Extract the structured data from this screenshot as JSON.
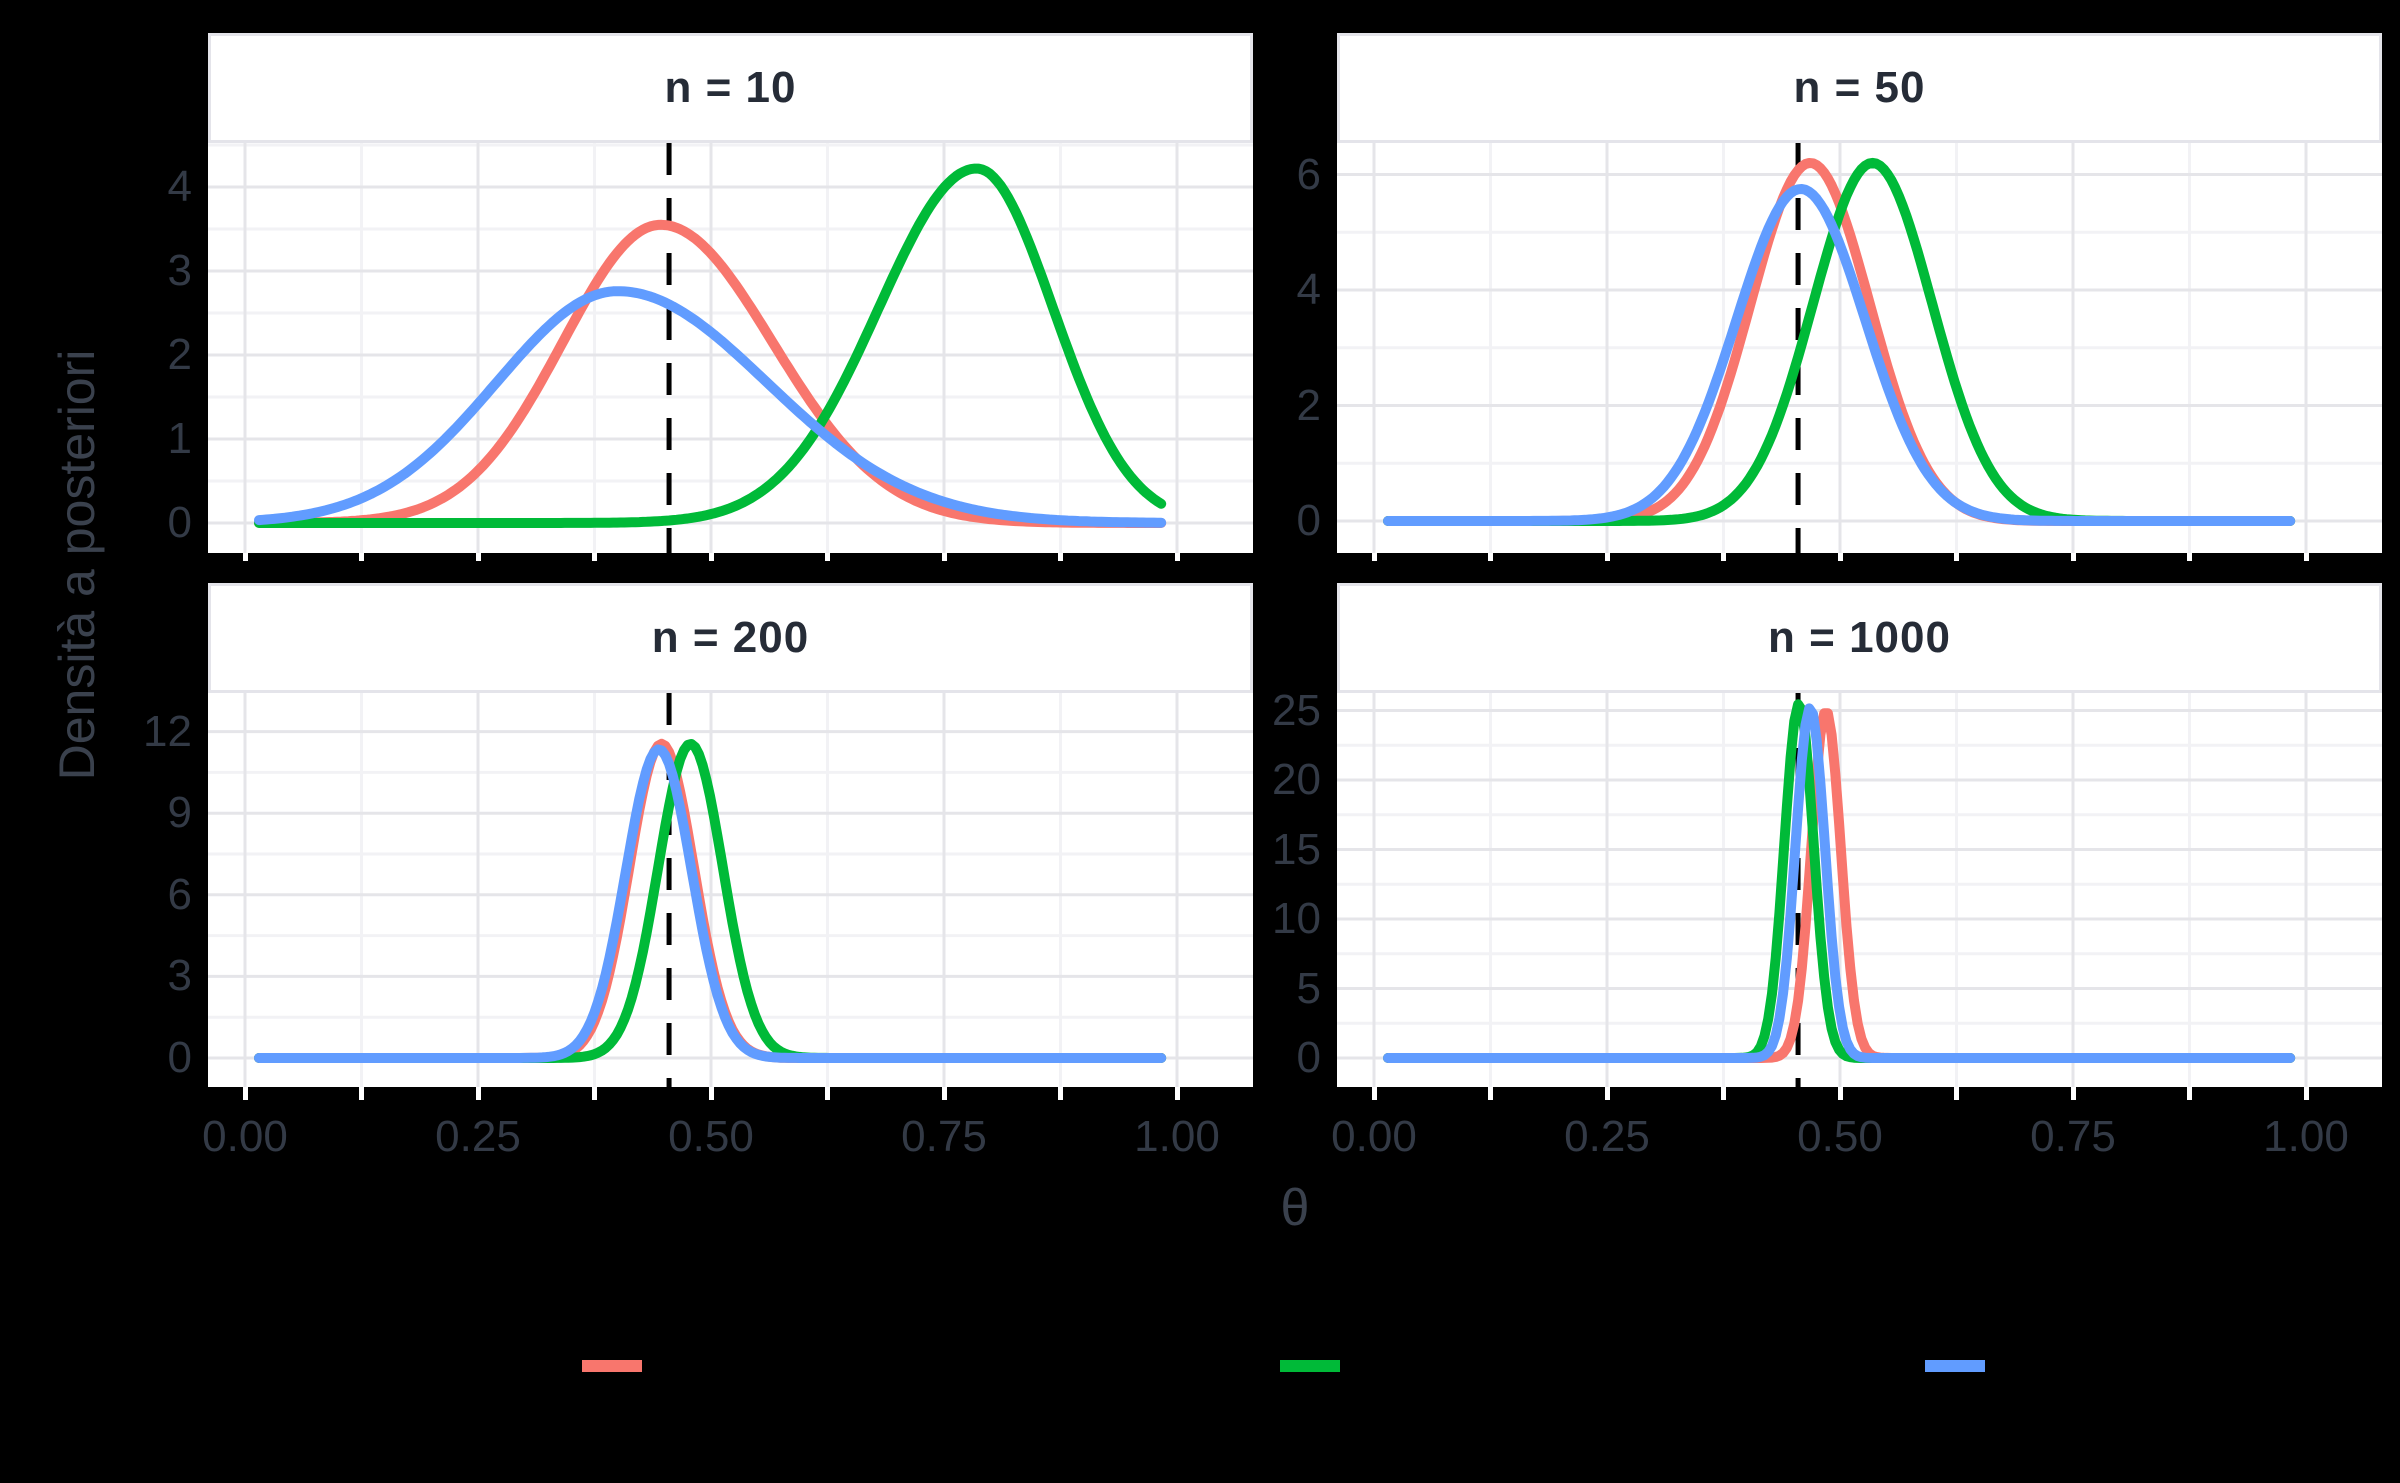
{
  "figure": {
    "background_color": "#000000",
    "panel_background": "#ffffff",
    "grid_major_color": "#e5e5e9",
    "grid_minor_color": "#f2f2f5",
    "tick_text_color": "#333a46",
    "axis_title_color": "#3a414d",
    "strip_text_color": "#262c37",
    "strip_border_color": "#e4e4ea",
    "tick_mark_color": "#ffffff",
    "y_axis_title": "Densità a posteriori",
    "x_axis_title": "θ"
  },
  "chart_data": {
    "type": "line",
    "title": "",
    "xlabel": "θ",
    "ylabel": "Densità a posteriori",
    "grid": true,
    "legend_position": "bottom",
    "x_range": [
      0,
      1
    ],
    "x_ticks": [
      0,
      0.25,
      0.5,
      0.75,
      1
    ],
    "x_tick_labels": [
      "0.00",
      "0.25",
      "0.50",
      "0.75",
      "1.00"
    ],
    "x_minor_step": 0.125,
    "curve_x_extent": [
      0.015,
      0.985
    ],
    "vline_x": 0.455,
    "vline_style": "dashed",
    "vline_color": "#000000",
    "series_colors": {
      "salmon": "#F8766D",
      "green": "#00BA38",
      "blue": "#619CFF"
    },
    "draw_order": [
      "salmon",
      "green",
      "blue"
    ],
    "panels": [
      {
        "facet_label": "n = 10",
        "y_ticks": [
          0,
          1,
          2,
          3,
          4
        ],
        "y_minor_step": 0.5,
        "curves": [
          {
            "color_key": "salmon",
            "peak_x": 0.446,
            "peak_y": 3.55,
            "sd_left": 0.105,
            "sd_right": 0.12
          },
          {
            "color_key": "green",
            "peak_x": 0.785,
            "peak_y": 4.22,
            "sd_left": 0.105,
            "sd_right": 0.082
          },
          {
            "color_key": "blue",
            "peak_x": 0.4,
            "peak_y": 2.76,
            "sd_left": 0.13,
            "sd_right": 0.16
          }
        ]
      },
      {
        "facet_label": "n = 50",
        "y_ticks": [
          0,
          2,
          4,
          6
        ],
        "y_minor_step": 1,
        "curves": [
          {
            "color_key": "salmon",
            "peak_x": 0.468,
            "peak_y": 6.2,
            "sd_left": 0.064,
            "sd_right": 0.064
          },
          {
            "color_key": "green",
            "peak_x": 0.535,
            "peak_y": 6.2,
            "sd_left": 0.064,
            "sd_right": 0.064
          },
          {
            "color_key": "blue",
            "peak_x": 0.458,
            "peak_y": 5.75,
            "sd_left": 0.069,
            "sd_right": 0.069
          }
        ]
      },
      {
        "facet_label": "n = 200",
        "y_ticks": [
          0,
          3,
          6,
          9,
          12
        ],
        "y_minor_step": 1.5,
        "curves": [
          {
            "color_key": "salmon",
            "peak_x": 0.447,
            "peak_y": 11.55,
            "sd_left": 0.0347,
            "sd_right": 0.0347
          },
          {
            "color_key": "green",
            "peak_x": 0.478,
            "peak_y": 11.55,
            "sd_left": 0.0347,
            "sd_right": 0.0347
          },
          {
            "color_key": "blue",
            "peak_x": 0.444,
            "peak_y": 11.35,
            "sd_left": 0.0353,
            "sd_right": 0.0353
          }
        ]
      },
      {
        "facet_label": "n = 1000",
        "y_ticks": [
          0,
          5,
          10,
          15,
          20,
          25
        ],
        "y_minor_step": 2.5,
        "curves": [
          {
            "color_key": "salmon",
            "peak_x": 0.485,
            "peak_y": 25.0,
            "sd_left": 0.0158,
            "sd_right": 0.0158
          },
          {
            "color_key": "green",
            "peak_x": 0.456,
            "peak_y": 25.5,
            "sd_left": 0.0157,
            "sd_right": 0.0157
          },
          {
            "color_key": "blue",
            "peak_x": 0.468,
            "peak_y": 25.2,
            "sd_left": 0.0158,
            "sd_right": 0.0158
          }
        ]
      }
    ]
  },
  "legend": {
    "keys": [
      {
        "name": "salmon",
        "color": "#F8766D"
      },
      {
        "name": "green",
        "color": "#00BA38"
      },
      {
        "name": "blue",
        "color": "#619CFF"
      }
    ]
  }
}
